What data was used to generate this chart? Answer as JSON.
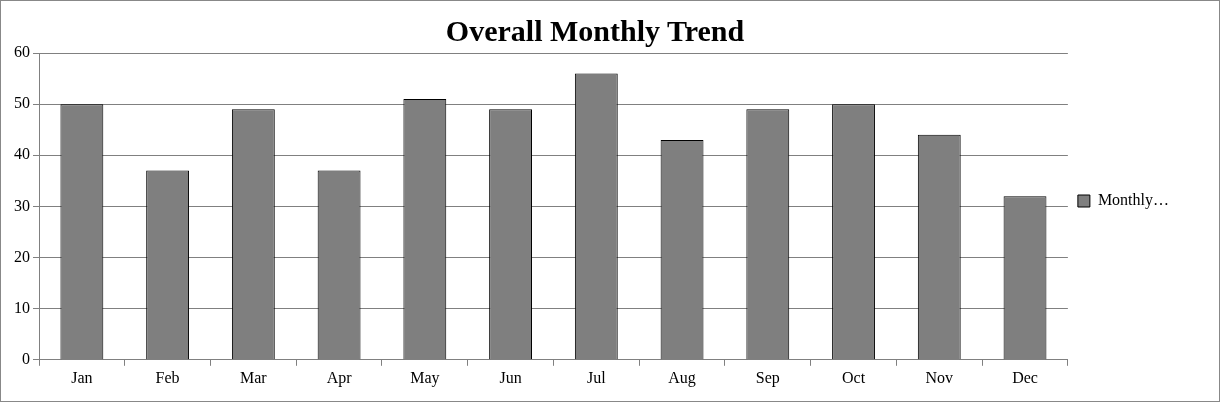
{
  "chart_data": {
    "type": "bar",
    "title": "Overall Monthly Trend",
    "categories": [
      "Jan",
      "Feb",
      "Mar",
      "Apr",
      "May",
      "Jun",
      "Jul",
      "Aug",
      "Sep",
      "Oct",
      "Nov",
      "Dec"
    ],
    "series": [
      {
        "name": "Monthly…",
        "color": "#7f7f7f",
        "values": [
          50,
          37,
          49,
          37,
          51,
          49,
          56,
          43,
          49,
          50,
          44,
          32
        ]
      }
    ],
    "ylim": [
      0,
      60
    ],
    "yticks": [
      0,
      10,
      20,
      30,
      40,
      50,
      60
    ],
    "grid": "y",
    "legend": "right"
  }
}
